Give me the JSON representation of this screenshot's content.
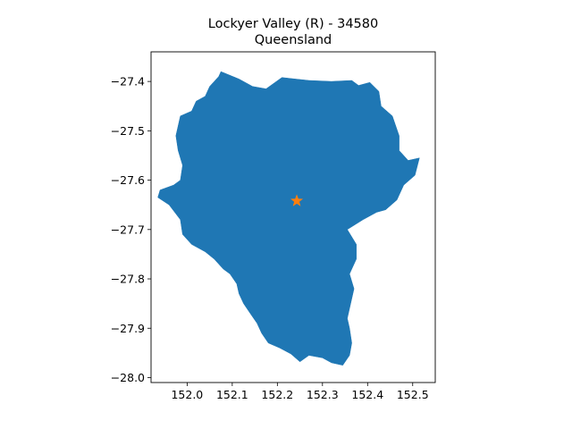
{
  "figure": {
    "title_line1": "Lockyer Valley (R) - 34580",
    "title_line2": "Queensland"
  },
  "colors": {
    "region_fill": "#1f77b4",
    "centroid_marker": "#ff7f0e",
    "axes": "#000000",
    "background": "#ffffff"
  },
  "chart_data": {
    "type": "map",
    "title": "Lockyer Valley (R) - 34580\nQueensland",
    "xlim": [
      151.92,
      152.55
    ],
    "ylim": [
      -28.01,
      -27.34
    ],
    "x_ticks": [
      152.0,
      152.1,
      152.2,
      152.3,
      152.4,
      152.5
    ],
    "x_tick_labels": [
      "152.0",
      "152.1",
      "152.2",
      "152.3",
      "152.4",
      "152.5"
    ],
    "y_ticks": [
      -27.4,
      -27.5,
      -27.6,
      -27.7,
      -27.8,
      -27.9,
      -28.0
    ],
    "y_tick_labels": [
      "−27.4",
      "−27.5",
      "−27.6",
      "−27.7",
      "−27.8",
      "−27.9",
      "−28.0"
    ],
    "grid": false,
    "marker": {
      "shape": "star",
      "lon": 152.243,
      "lat": -27.642
    },
    "boundary": [
      [
        152.075,
        -27.38
      ],
      [
        152.115,
        -27.395
      ],
      [
        152.145,
        -27.41
      ],
      [
        152.175,
        -27.415
      ],
      [
        152.21,
        -27.392
      ],
      [
        152.24,
        -27.395
      ],
      [
        152.27,
        -27.398
      ],
      [
        152.32,
        -27.4
      ],
      [
        152.365,
        -27.398
      ],
      [
        152.38,
        -27.408
      ],
      [
        152.405,
        -27.402
      ],
      [
        152.425,
        -27.42
      ],
      [
        152.43,
        -27.45
      ],
      [
        152.455,
        -27.47
      ],
      [
        152.47,
        -27.51
      ],
      [
        152.47,
        -27.54
      ],
      [
        152.49,
        -27.56
      ],
      [
        152.515,
        -27.555
      ],
      [
        152.505,
        -27.59
      ],
      [
        152.48,
        -27.61
      ],
      [
        152.465,
        -27.64
      ],
      [
        152.44,
        -27.66
      ],
      [
        152.42,
        -27.665
      ],
      [
        152.39,
        -27.68
      ],
      [
        152.355,
        -27.7
      ],
      [
        152.375,
        -27.73
      ],
      [
        152.375,
        -27.76
      ],
      [
        152.36,
        -27.79
      ],
      [
        152.37,
        -27.82
      ],
      [
        152.36,
        -27.86
      ],
      [
        152.355,
        -27.88
      ],
      [
        152.36,
        -27.9
      ],
      [
        152.365,
        -27.93
      ],
      [
        152.36,
        -27.955
      ],
      [
        152.345,
        -27.975
      ],
      [
        152.32,
        -27.97
      ],
      [
        152.3,
        -27.96
      ],
      [
        152.27,
        -27.955
      ],
      [
        152.25,
        -27.968
      ],
      [
        152.23,
        -27.952
      ],
      [
        152.205,
        -27.94
      ],
      [
        152.18,
        -27.93
      ],
      [
        152.165,
        -27.91
      ],
      [
        152.155,
        -27.89
      ],
      [
        152.14,
        -27.87
      ],
      [
        152.125,
        -27.85
      ],
      [
        152.115,
        -27.83
      ],
      [
        152.11,
        -27.81
      ],
      [
        152.095,
        -27.79
      ],
      [
        152.08,
        -27.78
      ],
      [
        152.06,
        -27.76
      ],
      [
        152.04,
        -27.745
      ],
      [
        152.01,
        -27.73
      ],
      [
        151.99,
        -27.71
      ],
      [
        151.985,
        -27.68
      ],
      [
        151.96,
        -27.65
      ],
      [
        151.935,
        -27.635
      ],
      [
        151.94,
        -27.62
      ],
      [
        151.97,
        -27.61
      ],
      [
        151.985,
        -27.6
      ],
      [
        151.99,
        -27.57
      ],
      [
        151.98,
        -27.54
      ],
      [
        151.975,
        -27.51
      ],
      [
        151.985,
        -27.47
      ],
      [
        152.01,
        -27.46
      ],
      [
        152.02,
        -27.44
      ],
      [
        152.04,
        -27.43
      ],
      [
        152.05,
        -27.41
      ],
      [
        152.07,
        -27.39
      ]
    ]
  }
}
